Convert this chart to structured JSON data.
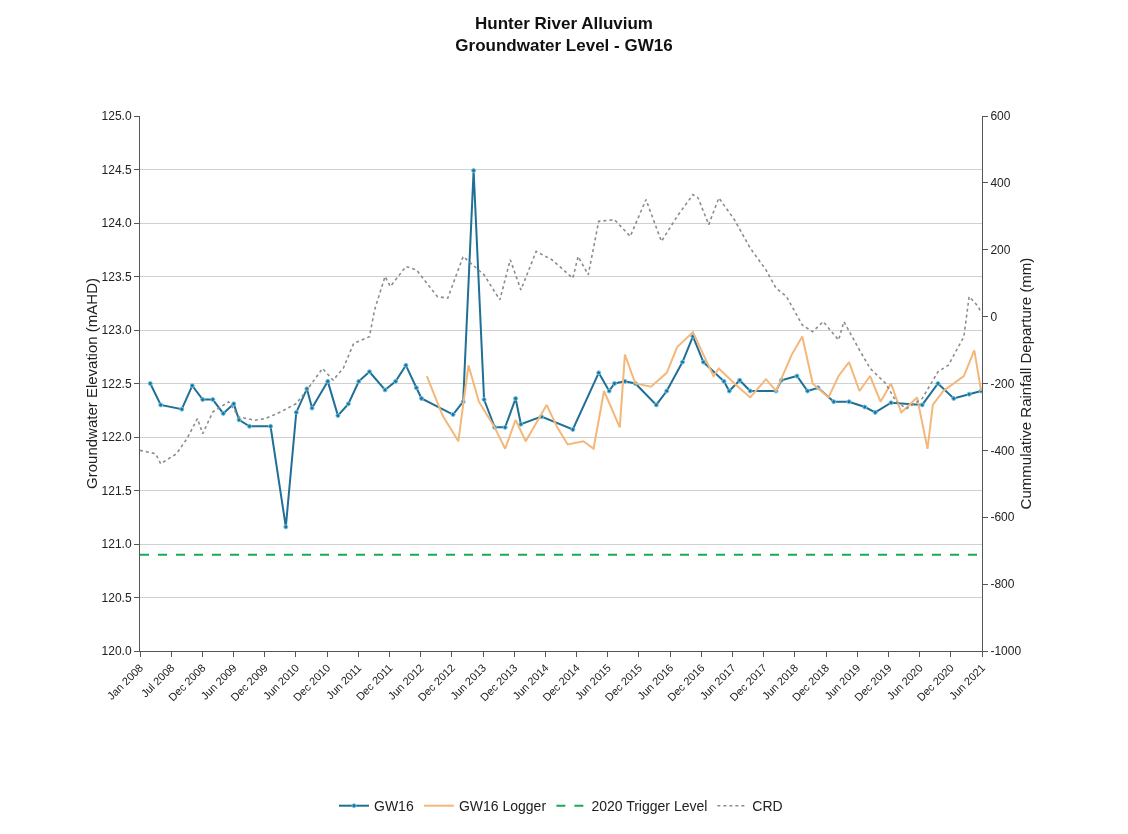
{
  "chart_data": {
    "type": "line",
    "title": "Hunter River Alluvium\nGroundwater Level - GW16",
    "ylabel": "Groundwater Elevation (mAHD)",
    "y2label": "Cummulative Rainfall Departure (mm)",
    "xlim": [
      "2008-01-01",
      "2021-06-15"
    ],
    "xticks": [
      {
        "value": "2008-01-01",
        "label": "Jan 2008"
      },
      {
        "value": "2008-07-01",
        "label": "Jul 2008"
      },
      {
        "value": "2008-12-30",
        "label": "Dec 2008"
      },
      {
        "value": "2009-06-30",
        "label": "Jun 2009"
      },
      {
        "value": "2009-12-29",
        "label": "Dec 2009"
      },
      {
        "value": "2010-06-29",
        "label": "Jun 2010"
      },
      {
        "value": "2010-12-28",
        "label": "Dec 2010"
      },
      {
        "value": "2011-06-28",
        "label": "Jun 2011"
      },
      {
        "value": "2011-12-27",
        "label": "Dec 2011"
      },
      {
        "value": "2012-06-26",
        "label": "Jun 2012"
      },
      {
        "value": "2012-12-25",
        "label": "Dec 2012"
      },
      {
        "value": "2013-06-25",
        "label": "Jun 2013"
      },
      {
        "value": "2013-12-24",
        "label": "Dec 2013"
      },
      {
        "value": "2014-06-24",
        "label": "Jun 2014"
      },
      {
        "value": "2014-12-23",
        "label": "Dec 2014"
      },
      {
        "value": "2015-06-23",
        "label": "Jun 2015"
      },
      {
        "value": "2015-12-22",
        "label": "Dec 2015"
      },
      {
        "value": "2016-06-21",
        "label": "Jun 2016"
      },
      {
        "value": "2016-12-20",
        "label": "Dec 2016"
      },
      {
        "value": "2017-06-20",
        "label": "Jun 2017"
      },
      {
        "value": "2017-12-19",
        "label": "Dec 2017"
      },
      {
        "value": "2018-06-19",
        "label": "Jun 2018"
      },
      {
        "value": "2018-12-18",
        "label": "Dec 2018"
      },
      {
        "value": "2019-06-18",
        "label": "Jun 2019"
      },
      {
        "value": "2019-12-17",
        "label": "Dec 2019"
      },
      {
        "value": "2020-06-16",
        "label": "Jun 2020"
      },
      {
        "value": "2020-12-15",
        "label": "Dec 2020"
      },
      {
        "value": "2021-06-15",
        "label": "Jun 2021"
      }
    ],
    "ylim": [
      120,
      125
    ],
    "yticks": [
      {
        "value": 120,
        "label": "120.0"
      },
      {
        "value": 120.5,
        "label": "120.5"
      },
      {
        "value": 121,
        "label": "121.0"
      },
      {
        "value": 121.5,
        "label": "121.5"
      },
      {
        "value": 122,
        "label": "122.0"
      },
      {
        "value": 122.5,
        "label": "122.5"
      },
      {
        "value": 123,
        "label": "123.0"
      },
      {
        "value": 123.5,
        "label": "123.5"
      },
      {
        "value": 124,
        "label": "124.0"
      },
      {
        "value": 124.5,
        "label": "124.5"
      },
      {
        "value": 125,
        "label": "125.0"
      }
    ],
    "y2lim": [
      -1000,
      600
    ],
    "y2ticks": [
      -1000,
      -800,
      -600,
      -400,
      -200,
      0,
      200,
      400,
      600
    ],
    "grid": "y",
    "legend": "bottom",
    "series": [
      {
        "name": "GW16",
        "color": "#1f6f96",
        "marker": "circle",
        "line_style": "solid",
        "x": [
          "2008-03",
          "2008-05",
          "2008-09",
          "2008-11",
          "2009-01",
          "2009-03",
          "2009-05",
          "2009-07",
          "2009-08",
          "2009-10",
          "2010-02",
          "2010-05",
          "2010-07",
          "2010-09",
          "2010-10",
          "2011-01",
          "2011-03",
          "2011-05",
          "2011-07",
          "2011-09",
          "2011-12",
          "2012-02",
          "2012-04",
          "2012-06",
          "2012-07",
          "2013-01",
          "2013-03",
          "2013-05",
          "2013-07",
          "2013-09",
          "2013-11",
          "2014-01",
          "2014-02",
          "2014-06",
          "2014-12",
          "2015-05",
          "2015-07",
          "2015-08",
          "2015-10",
          "2015-12",
          "2016-04",
          "2016-06",
          "2016-09",
          "2016-11",
          "2017-01",
          "2017-05",
          "2017-06",
          "2017-08",
          "2017-10",
          "2018-03",
          "2018-04",
          "2018-07",
          "2018-09",
          "2018-11",
          "2019-02",
          "2019-05",
          "2019-08",
          "2019-10",
          "2020-01",
          "2020-07",
          "2020-10",
          "2021-01",
          "2021-04",
          "2021-06-10"
        ],
        "values": [
          122.5,
          122.3,
          122.26,
          122.48,
          122.35,
          122.35,
          122.22,
          122.31,
          122.16,
          122.1,
          122.1,
          121.16,
          122.23,
          122.45,
          122.27,
          122.52,
          122.2,
          122.31,
          122.52,
          122.61,
          122.44,
          122.52,
          122.67,
          122.46,
          122.36,
          122.21,
          122.33,
          124.49,
          122.35,
          122.09,
          122.09,
          122.36,
          122.12,
          122.19,
          122.07,
          122.6,
          122.43,
          122.5,
          122.52,
          122.5,
          122.3,
          122.43,
          122.7,
          122.94,
          122.7,
          122.52,
          122.43,
          122.53,
          122.43,
          122.43,
          122.53,
          122.57,
          122.43,
          122.46,
          122.33,
          122.33,
          122.28,
          122.23,
          122.32,
          122.3,
          122.5,
          122.36,
          122.4,
          122.43
        ]
      },
      {
        "name": "GW16 Logger",
        "color": "#f4b77a",
        "marker": "none",
        "line_style": "solid",
        "x": [
          "2012-08",
          "2012-11",
          "2013-02",
          "2013-03",
          "2013-04",
          "2013-06",
          "2013-09",
          "2013-11",
          "2014-01",
          "2014-03",
          "2014-07",
          "2014-09",
          "2014-11",
          "2015-02",
          "2015-04",
          "2015-06",
          "2015-09",
          "2015-10",
          "2015-12",
          "2016-03",
          "2016-06",
          "2016-08",
          "2016-11",
          "2017-01",
          "2017-03",
          "2017-04",
          "2017-07",
          "2017-10",
          "2018-01",
          "2018-03",
          "2018-06",
          "2018-08",
          "2018-10",
          "2019-01",
          "2019-03",
          "2019-05",
          "2019-07",
          "2019-09",
          "2019-11",
          "2020-01",
          "2020-03",
          "2020-06",
          "2020-08",
          "2020-09",
          "2020-11",
          "2021-03",
          "2021-05",
          "2021-06-10"
        ],
        "values": [
          122.57,
          122.2,
          121.96,
          122.3,
          122.67,
          122.33,
          122.09,
          121.89,
          122.16,
          121.96,
          122.3,
          122.09,
          121.93,
          121.96,
          121.89,
          122.43,
          122.09,
          122.77,
          122.5,
          122.47,
          122.6,
          122.84,
          122.98,
          122.77,
          122.57,
          122.64,
          122.5,
          122.37,
          122.54,
          122.43,
          122.77,
          122.94,
          122.5,
          122.37,
          122.57,
          122.7,
          122.43,
          122.57,
          122.33,
          122.5,
          122.23,
          122.37,
          121.89,
          122.3,
          122.43,
          122.57,
          122.81,
          122.43
        ]
      },
      {
        "name": "CRD",
        "color": "#8c8c8c",
        "marker": "none",
        "line_style": "dotted",
        "axis": "y2",
        "x": [
          "2008-01",
          "2008-04",
          "2008-05",
          "2008-08",
          "2008-10",
          "2008-12",
          "2009-01",
          "2009-03",
          "2009-06",
          "2009-08",
          "2009-11",
          "2010-01",
          "2010-04",
          "2010-07",
          "2010-09",
          "2010-12",
          "2011-02",
          "2011-04",
          "2011-06",
          "2011-09",
          "2011-10",
          "2011-12",
          "2012-01",
          "2012-04",
          "2012-06",
          "2012-10",
          "2012-12",
          "2013-03",
          "2013-07",
          "2013-10",
          "2013-12",
          "2014-02",
          "2014-05",
          "2014-08",
          "2014-12",
          "2015-01",
          "2015-03",
          "2015-05",
          "2015-08",
          "2015-11",
          "2016-02",
          "2016-05",
          "2016-08",
          "2016-11",
          "2016-12",
          "2017-02",
          "2017-04",
          "2017-07",
          "2017-10",
          "2018-01",
          "2018-03",
          "2018-05",
          "2018-08",
          "2018-10",
          "2018-12",
          "2019-03",
          "2019-04",
          "2019-07",
          "2019-09",
          "2019-12",
          "2020-02",
          "2020-04",
          "2020-07",
          "2020-10",
          "2020-12",
          "2021-03",
          "2021-04",
          "2021-05-25",
          "2021-06-10"
        ],
        "values": [
          -400,
          -410,
          -440,
          -410,
          -365,
          -305,
          -350,
          -285,
          -255,
          -300,
          -310,
          -305,
          -285,
          -260,
          -220,
          -155,
          -190,
          -155,
          -80,
          -60,
          20,
          120,
          90,
          150,
          140,
          60,
          55,
          180,
          125,
          50,
          170,
          80,
          195,
          170,
          115,
          180,
          125,
          285,
          290,
          240,
          350,
          225,
          300,
          365,
          355,
          275,
          355,
          290,
          205,
          140,
          85,
          60,
          -25,
          -45,
          -15,
          -70,
          -15,
          -100,
          -155,
          -200,
          -255,
          -275,
          -245,
          -165,
          -145,
          -60,
          60,
          30,
          10
        ]
      }
    ],
    "ref_lines": [
      {
        "axis": "y",
        "value": 120.9,
        "label": "2020 Trigger Level",
        "color": "#1aaa55",
        "line_style": "dashed"
      }
    ]
  }
}
